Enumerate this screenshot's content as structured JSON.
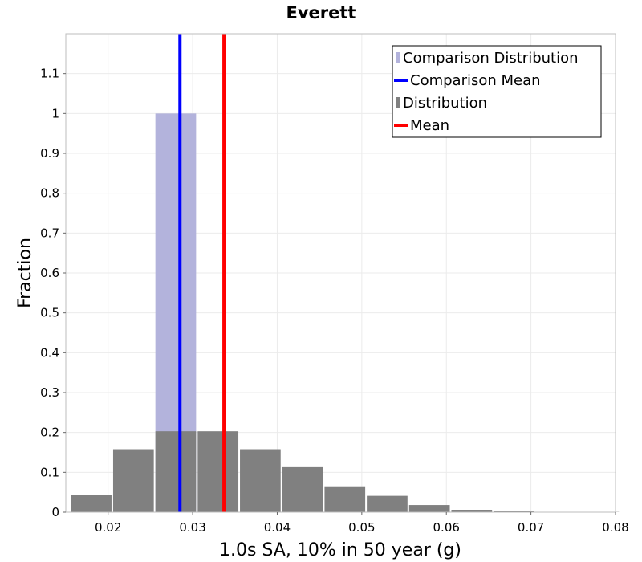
{
  "chart_data": {
    "type": "bar",
    "title": "Everett",
    "xlabel": "1.0s SA, 10% in 50 year (g)",
    "ylabel": "Fraction",
    "xlim": [
      0.015,
      0.08
    ],
    "ylim": [
      0,
      1.2
    ],
    "xticks": [
      "0.02",
      "0.03",
      "0.04",
      "0.05",
      "0.06",
      "0.07",
      "0.08"
    ],
    "yticks": [
      "0",
      "0.1",
      "0.2",
      "0.3",
      "0.4",
      "0.5",
      "0.6",
      "0.7",
      "0.8",
      "0.9",
      "1",
      "1.1"
    ],
    "bin_width": 0.005,
    "series": [
      {
        "name": "Comparison Distribution",
        "kind": "histogram",
        "color": "#b3b3dc",
        "bin_starts": [
          0.0255
        ],
        "values": [
          1.0
        ]
      },
      {
        "name": "Distribution",
        "kind": "histogram",
        "color": "#808080",
        "bin_starts": [
          0.0155,
          0.0205,
          0.0255,
          0.0305,
          0.0355,
          0.0405,
          0.0455,
          0.0505,
          0.0555,
          0.0605,
          0.0655,
          0.0705,
          0.0755
        ],
        "values": [
          0.044,
          0.158,
          0.203,
          0.203,
          0.158,
          0.113,
          0.065,
          0.041,
          0.018,
          0.006,
          0.002,
          0.001,
          0.0005
        ]
      },
      {
        "name": "Comparison Mean",
        "kind": "vline",
        "color": "#0000ff",
        "x": 0.0285
      },
      {
        "name": "Mean",
        "kind": "vline",
        "color": "#ff0000",
        "x": 0.0337
      }
    ],
    "legend": {
      "position": "top-right",
      "entries": [
        {
          "label": "Comparison Distribution",
          "color": "#b3b3dc",
          "marker": "bar"
        },
        {
          "label": "Comparison Mean",
          "color": "#0000ff",
          "marker": "line"
        },
        {
          "label": "Distribution",
          "color": "#808080",
          "marker": "bar"
        },
        {
          "label": "Mean",
          "color": "#ff0000",
          "marker": "line"
        }
      ]
    },
    "grid": true
  }
}
